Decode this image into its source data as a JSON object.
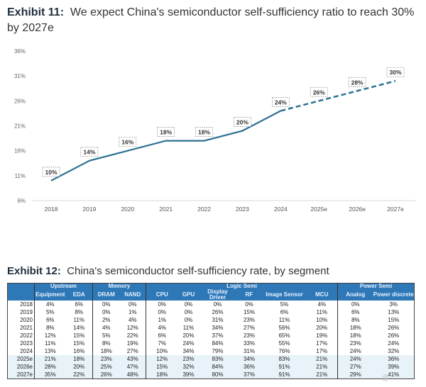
{
  "exhibit11": {
    "label": "Exhibit 11:",
    "title": "We expect China's semiconductor self-sufficiency ratio to reach 30% by 2027e"
  },
  "chart_data": {
    "type": "line",
    "title": "We expect China's semiconductor self-sufficiency ratio to reach 30% by 2027e",
    "categories": [
      "2018",
      "2019",
      "2020",
      "2021",
      "2022",
      "2023",
      "2024",
      "2025e",
      "2026e",
      "2027e"
    ],
    "series": [
      {
        "values": [
          10,
          14,
          16,
          18,
          18,
          20,
          24,
          26,
          28,
          30
        ],
        "data_labels": [
          "10%",
          "14%",
          "16%",
          "18%",
          "18%",
          "20%",
          "24%",
          "26%",
          "28%",
          "30%"
        ],
        "style_note": "solid through 2024, dashed for estimates"
      }
    ],
    "yticks": [
      "6%",
      "11%",
      "16%",
      "21%",
      "26%",
      "31%",
      "36%"
    ],
    "ylim": [
      6,
      36
    ],
    "grid": false,
    "line_color": "#2c7194"
  },
  "exhibit12": {
    "label": "Exhibit 12:",
    "title": "China's semiconductor self-sufficiency rate, by segment"
  },
  "table": {
    "groups": [
      "Upstream",
      "Memory",
      "Logic Semi",
      "Power Semi"
    ],
    "columns": [
      "Equipment",
      "EDA",
      "DRAM",
      "NAND",
      "CPU",
      "GPU",
      "Display Driver",
      "RF",
      "Image Sensor",
      "MCU",
      "Analog",
      "Power discrete"
    ],
    "rows": [
      {
        "year": "2018",
        "v": [
          "4%",
          "6%",
          "0%",
          "0%",
          "0%",
          "0%",
          "0%",
          "0%",
          "5%",
          "4%",
          "0%",
          "3%"
        ]
      },
      {
        "year": "2019",
        "v": [
          "5%",
          "8%",
          "0%",
          "1%",
          "0%",
          "0%",
          "26%",
          "15%",
          "6%",
          "11%",
          "6%",
          "13%"
        ]
      },
      {
        "year": "2020",
        "v": [
          "6%",
          "11%",
          "2%",
          "4%",
          "1%",
          "0%",
          "31%",
          "23%",
          "11%",
          "10%",
          "8%",
          "15%"
        ]
      },
      {
        "year": "2021",
        "v": [
          "8%",
          "14%",
          "4%",
          "12%",
          "4%",
          "11%",
          "34%",
          "27%",
          "56%",
          "20%",
          "18%",
          "26%"
        ]
      },
      {
        "year": "2022",
        "v": [
          "12%",
          "15%",
          "5%",
          "22%",
          "6%",
          "20%",
          "37%",
          "23%",
          "65%",
          "19%",
          "18%",
          "26%"
        ]
      },
      {
        "year": "2023",
        "v": [
          "11%",
          "15%",
          "8%",
          "19%",
          "7%",
          "24%",
          "84%",
          "33%",
          "55%",
          "17%",
          "23%",
          "24%"
        ]
      },
      {
        "year": "2024",
        "v": [
          "13%",
          "16%",
          "18%",
          "27%",
          "10%",
          "34%",
          "79%",
          "31%",
          "76%",
          "17%",
          "24%",
          "32%"
        ]
      },
      {
        "year": "2025e",
        "v": [
          "21%",
          "18%",
          "23%",
          "43%",
          "12%",
          "23%",
          "83%",
          "34%",
          "83%",
          "21%",
          "24%",
          "36%"
        ]
      },
      {
        "year": "2026e",
        "v": [
          "28%",
          "20%",
          "25%",
          "47%",
          "15%",
          "32%",
          "84%",
          "36%",
          "91%",
          "21%",
          "27%",
          "39%"
        ]
      },
      {
        "year": "2027e",
        "v": [
          "35%",
          "22%",
          "26%",
          "48%",
          "18%",
          "39%",
          "80%",
          "37%",
          "91%",
          "21%",
          "29%",
          "41%"
        ]
      }
    ]
  }
}
